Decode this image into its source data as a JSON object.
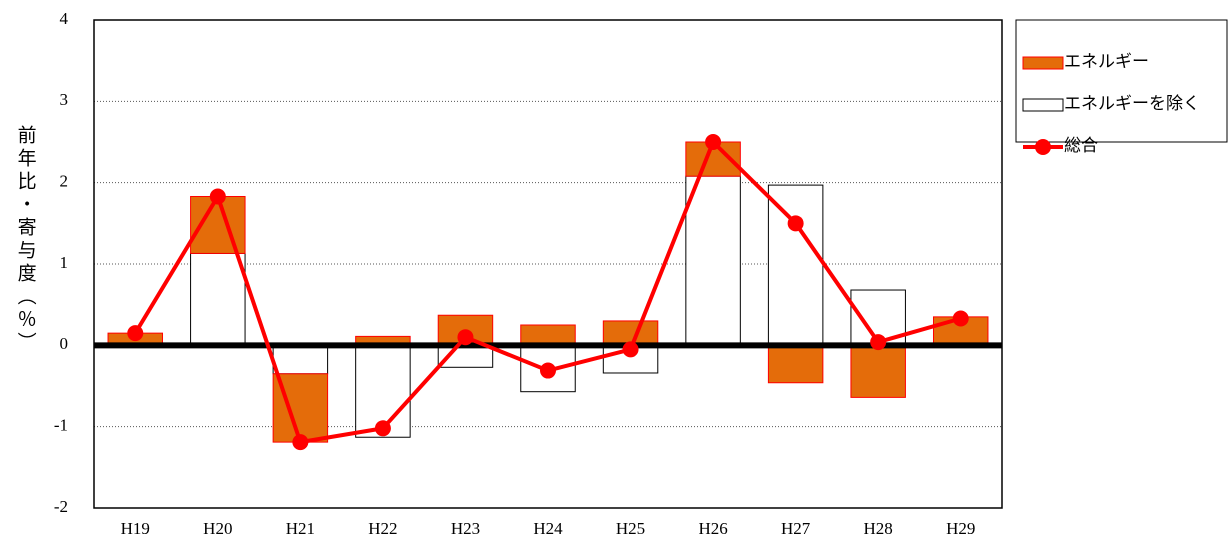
{
  "chart_data": {
    "type": "stacked_bar_line",
    "y_label": "前年比・寄与度（％）",
    "categories": [
      "H19",
      "H20",
      "H21",
      "H22",
      "H23",
      "H24",
      "H25",
      "H26",
      "H27",
      "H28",
      "H29"
    ],
    "series": [
      {
        "name": "エネルギー",
        "type": "bar",
        "color": "#e46c0a",
        "values": [
          0.15,
          0.7,
          -0.84,
          0.11,
          0.37,
          0.25,
          0.3,
          0.42,
          -0.46,
          -0.64,
          0.35
        ]
      },
      {
        "name": "エネルギーを除く",
        "type": "bar",
        "color": "#ffffff",
        "values": [
          0,
          1.13,
          -0.35,
          -1.13,
          -0.27,
          -0.57,
          -0.34,
          2.08,
          1.97,
          0.68,
          -0.02
        ]
      },
      {
        "name": "総合",
        "type": "line",
        "color": "#ff0000",
        "values": [
          0.15,
          1.83,
          -1.19,
          -1.02,
          0.1,
          -0.31,
          -0.05,
          2.5,
          1.5,
          0.04,
          0.33
        ]
      }
    ],
    "ylim": [
      -2,
      4
    ],
    "yticks": [
      -2,
      -1,
      0,
      1,
      2,
      3,
      4
    ],
    "grid": true
  }
}
